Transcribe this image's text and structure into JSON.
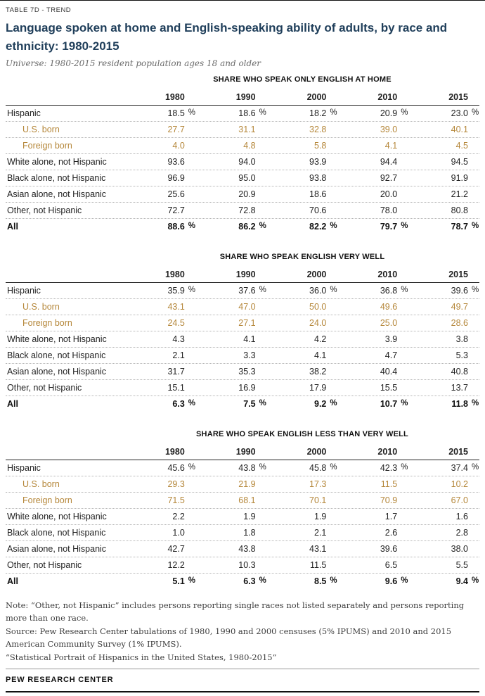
{
  "meta": {
    "tag": "TABLE 7D - TREND",
    "title": "Language spoken at home and English-speaking ability of adults, by race and ethnicity: 1980-2015",
    "universe": "Universe: 1980-2015 resident population ages 18 and older",
    "footer": "PEW RESEARCH CENTER"
  },
  "colors": {
    "title_navy": "#1f3e5a",
    "subgroup_gold": "#b5873a"
  },
  "years": [
    "1980",
    "1990",
    "2000",
    "2010",
    "2015"
  ],
  "chart_data": [
    {
      "type": "table",
      "title": "SHARE WHO SPEAK ONLY ENGLISH AT HOME",
      "columns": [
        "1980",
        "1990",
        "2000",
        "2010",
        "2015"
      ],
      "rows": [
        {
          "label": "Hispanic",
          "values": [
            18.5,
            18.6,
            18.2,
            20.9,
            23.0
          ],
          "show_percent": true,
          "style": "plain"
        },
        {
          "label": "U.S. born",
          "values": [
            27.7,
            31.1,
            32.8,
            39.0,
            40.1
          ],
          "show_percent": false,
          "style": "subgroup"
        },
        {
          "label": "Foreign born",
          "values": [
            4.0,
            4.8,
            5.8,
            4.1,
            4.5
          ],
          "show_percent": false,
          "style": "subgroup"
        },
        {
          "label": "White alone, not Hispanic",
          "values": [
            93.6,
            94.0,
            93.9,
            94.4,
            94.5
          ],
          "show_percent": false,
          "style": "plain"
        },
        {
          "label": "Black alone, not Hispanic",
          "values": [
            96.9,
            95.0,
            93.8,
            92.7,
            91.9
          ],
          "show_percent": false,
          "style": "plain"
        },
        {
          "label": "Asian alone, not Hispanic",
          "values": [
            25.6,
            20.9,
            18.6,
            20.0,
            21.2
          ],
          "show_percent": false,
          "style": "plain"
        },
        {
          "label": "Other, not Hispanic",
          "values": [
            72.7,
            72.8,
            70.6,
            78.0,
            80.8
          ],
          "show_percent": false,
          "style": "plain"
        },
        {
          "label": "All",
          "values": [
            88.6,
            86.2,
            82.2,
            79.7,
            78.7
          ],
          "show_percent": true,
          "style": "total"
        }
      ]
    },
    {
      "type": "table",
      "title": "SHARE WHO SPEAK ENGLISH VERY WELL",
      "columns": [
        "1980",
        "1990",
        "2000",
        "2010",
        "2015"
      ],
      "rows": [
        {
          "label": "Hispanic",
          "values": [
            35.9,
            37.6,
            36.0,
            36.8,
            39.6
          ],
          "show_percent": true,
          "style": "plain"
        },
        {
          "label": "U.S. born",
          "values": [
            43.1,
            47.0,
            50.0,
            49.6,
            49.7
          ],
          "show_percent": false,
          "style": "subgroup"
        },
        {
          "label": "Foreign born",
          "values": [
            24.5,
            27.1,
            24.0,
            25.0,
            28.6
          ],
          "show_percent": false,
          "style": "subgroup"
        },
        {
          "label": "White alone, not Hispanic",
          "values": [
            4.3,
            4.1,
            4.2,
            3.9,
            3.8
          ],
          "show_percent": false,
          "style": "plain"
        },
        {
          "label": "Black alone, not Hispanic",
          "values": [
            2.1,
            3.3,
            4.1,
            4.7,
            5.3
          ],
          "show_percent": false,
          "style": "plain"
        },
        {
          "label": "Asian alone, not Hispanic",
          "values": [
            31.7,
            35.3,
            38.2,
            40.4,
            40.8
          ],
          "show_percent": false,
          "style": "plain"
        },
        {
          "label": "Other, not Hispanic",
          "values": [
            15.1,
            16.9,
            17.9,
            15.5,
            13.7
          ],
          "show_percent": false,
          "style": "plain"
        },
        {
          "label": "All",
          "values": [
            6.3,
            7.5,
            9.2,
            10.7,
            11.8
          ],
          "show_percent": true,
          "style": "total"
        }
      ]
    },
    {
      "type": "table",
      "title": "SHARE WHO SPEAK ENGLISH LESS THAN VERY WELL",
      "columns": [
        "1980",
        "1990",
        "2000",
        "2010",
        "2015"
      ],
      "rows": [
        {
          "label": "Hispanic",
          "values": [
            45.6,
            43.8,
            45.8,
            42.3,
            37.4
          ],
          "show_percent": true,
          "style": "plain"
        },
        {
          "label": "U.S. born",
          "values": [
            29.3,
            21.9,
            17.3,
            11.5,
            10.2
          ],
          "show_percent": false,
          "style": "subgroup"
        },
        {
          "label": "Foreign born",
          "values": [
            71.5,
            68.1,
            70.1,
            70.9,
            67.0
          ],
          "show_percent": false,
          "style": "subgroup"
        },
        {
          "label": "White alone, not Hispanic",
          "values": [
            2.2,
            1.9,
            1.9,
            1.7,
            1.6
          ],
          "show_percent": false,
          "style": "plain"
        },
        {
          "label": "Black alone, not Hispanic",
          "values": [
            1.0,
            1.8,
            2.1,
            2.6,
            2.8
          ],
          "show_percent": false,
          "style": "plain"
        },
        {
          "label": "Asian alone, not Hispanic",
          "values": [
            42.7,
            43.8,
            43.1,
            39.6,
            38.0
          ],
          "show_percent": false,
          "style": "plain"
        },
        {
          "label": "Other, not Hispanic",
          "values": [
            12.2,
            10.3,
            11.5,
            6.5,
            5.5
          ],
          "show_percent": false,
          "style": "plain"
        },
        {
          "label": "All",
          "values": [
            5.1,
            6.3,
            8.5,
            9.6,
            9.4
          ],
          "show_percent": true,
          "style": "total"
        }
      ]
    }
  ],
  "notes": {
    "0": "Note: “Other, not Hispanic” includes persons reporting single races not listed separately and persons reporting more than one race.",
    "1": "Source: Pew Research Center tabulations of 1980, 1990 and 2000 censuses (5% IPUMS) and 2010 and 2015 American Community Survey (1% IPUMS).",
    "2": "“Statistical Portrait of Hispanics in the United States, 1980-2015”"
  }
}
